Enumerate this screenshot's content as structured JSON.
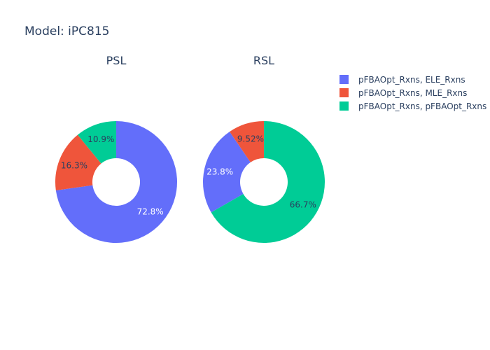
{
  "chart_data": {
    "type": "pie",
    "title": "Model: iPC815",
    "hole": true,
    "legend_position": "top-right",
    "labels": [
      "pFBAOpt_Rxns, ELE_Rxns",
      "pFBAOpt_Rxns, MLE_Rxns",
      "pFBAOpt_Rxns, pFBAOpt_Rxns"
    ],
    "colors": [
      "#636efa",
      "#ef553b",
      "#00cc96"
    ],
    "label_colors": [
      "#ffffff",
      "#2a3f5f",
      "#2a3f5f"
    ],
    "pies": [
      {
        "name": "PSL",
        "values": [
          72.8,
          16.3,
          10.9
        ],
        "text": [
          "72.8%",
          "16.3%",
          "10.9%"
        ]
      },
      {
        "name": "RSL",
        "values": [
          23.8,
          9.52,
          66.7
        ],
        "text": [
          "23.8%",
          "9.52%",
          "66.7%"
        ]
      }
    ]
  }
}
